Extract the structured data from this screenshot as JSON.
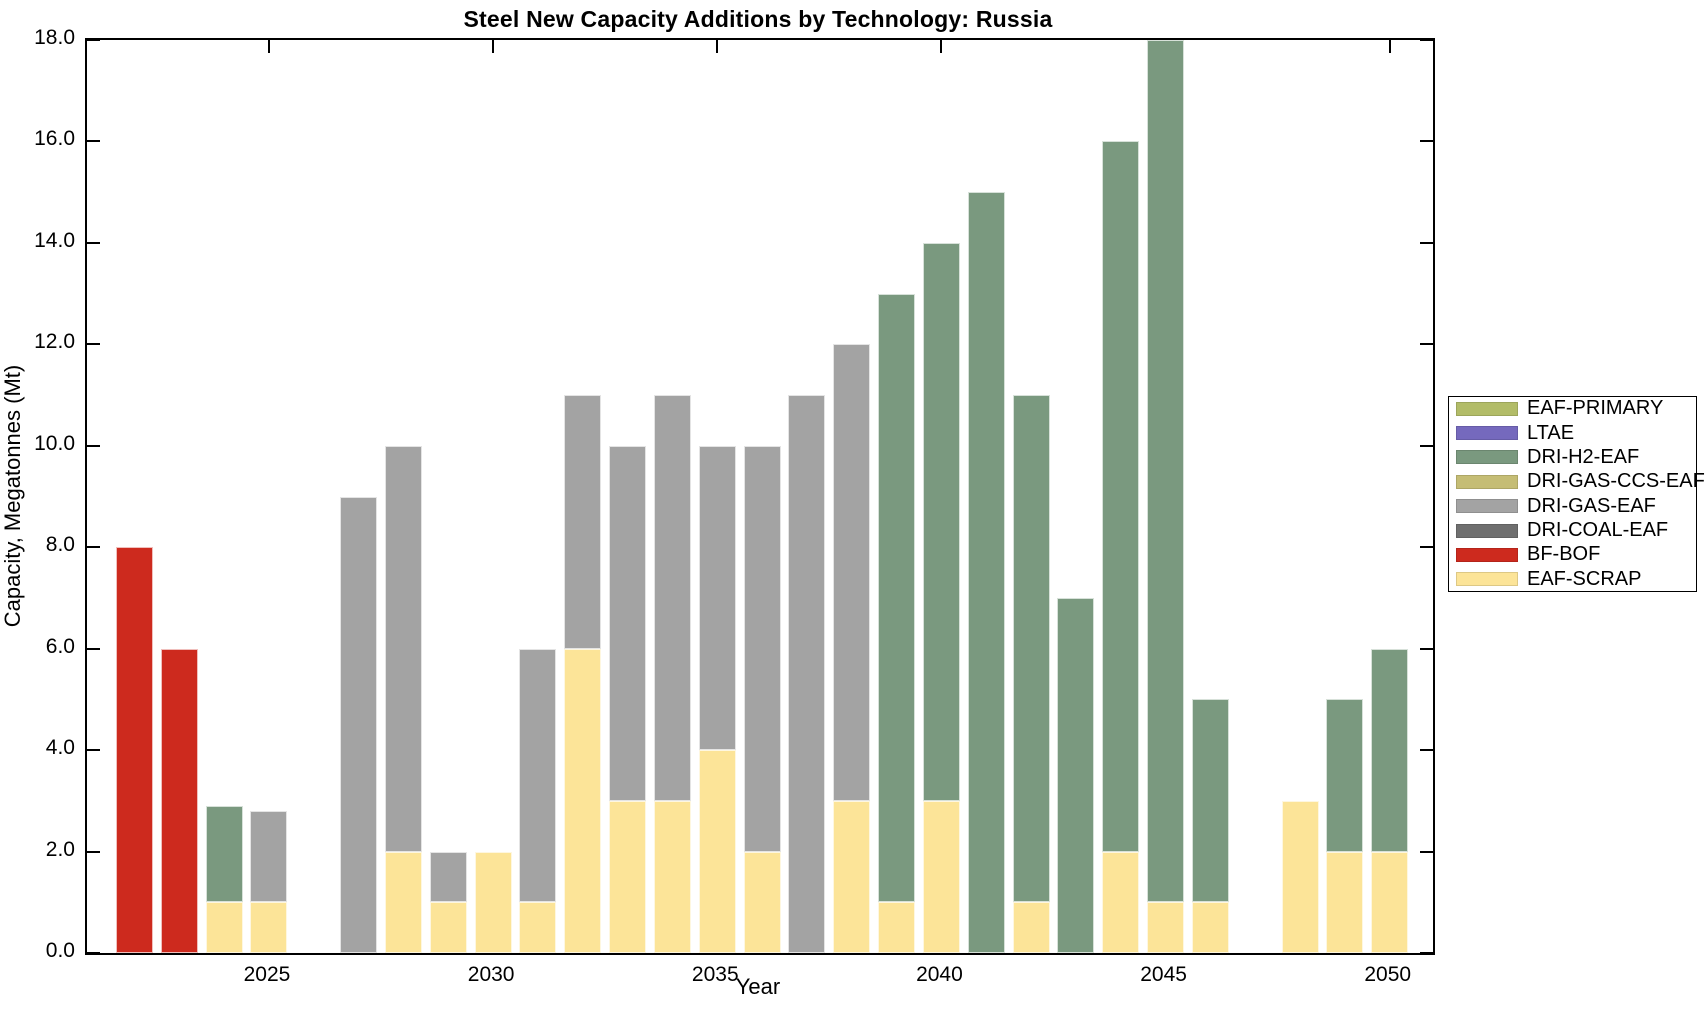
{
  "chart_data": {
    "type": "bar",
    "stacked": true,
    "title": "Steel New Capacity Additions by Technology: Russia",
    "xlabel": "Year",
    "ylabel": "Capacity, Megatonnes (Mt)",
    "ylim": [
      0,
      18
    ],
    "x_range": [
      2022,
      2050
    ],
    "grid": false,
    "legend_position": "right-outside",
    "yticks": [
      0,
      2,
      4,
      6,
      8,
      10,
      12,
      14,
      16,
      18
    ],
    "ytick_labels": [
      "0.0",
      "2.0",
      "4.0",
      "6.0",
      "8.0",
      "10.0",
      "12.0",
      "14.0",
      "16.0",
      "18.0"
    ],
    "xticks": [
      2025,
      2030,
      2035,
      2040,
      2045,
      2050
    ],
    "xtick_labels": [
      "2025",
      "2030",
      "2035",
      "2040",
      "2045",
      "2050"
    ],
    "legend": [
      {
        "label": "EAF-PRIMARY",
        "color": "#b2bc68"
      },
      {
        "label": "LTAE",
        "color": "#7569bd"
      },
      {
        "label": "DRI-H2-EAF",
        "color": "#7a997f"
      },
      {
        "label": "DRI-GAS-CCS-EAF",
        "color": "#c5bd75"
      },
      {
        "label": "DRI-GAS-EAF",
        "color": "#a3a3a3"
      },
      {
        "label": "DRI-COAL-EAF",
        "color": "#6f6f6f"
      },
      {
        "label": "BF-BOF",
        "color": "#cd2a1e"
      },
      {
        "label": "EAF-SCRAP",
        "color": "#fce498"
      }
    ],
    "series": [
      {
        "name": "EAF-SCRAP",
        "color": "#fce498",
        "data": {
          "2024": 1,
          "2025": 1,
          "2028": 2,
          "2029": 1,
          "2030": 2,
          "2031": 1,
          "2032": 6,
          "2033": 3,
          "2034": 3,
          "2035": 4,
          "2036": 2,
          "2038": 3,
          "2039": 1,
          "2040": 3,
          "2042": 1,
          "2044": 2,
          "2045": 1,
          "2046": 1,
          "2048": 3,
          "2049": 2,
          "2050": 2
        }
      },
      {
        "name": "BF-BOF",
        "color": "#cd2a1e",
        "data": {
          "2022": 8,
          "2023": 6
        }
      },
      {
        "name": "DRI-COAL-EAF",
        "color": "#6f6f6f",
        "data": {}
      },
      {
        "name": "DRI-GAS-EAF",
        "color": "#a3a3a3",
        "data": {
          "2025": 1.8,
          "2027": 9,
          "2028": 8,
          "2029": 1,
          "2031": 5,
          "2032": 5,
          "2033": 7,
          "2034": 8,
          "2035": 6,
          "2036": 8,
          "2037": 11,
          "2038": 9
        }
      },
      {
        "name": "DRI-GAS-CCS-EAF",
        "color": "#c5bd75",
        "data": {}
      },
      {
        "name": "DRI-H2-EAF",
        "color": "#7a997f",
        "data": {
          "2024": 1.9,
          "2039": 12,
          "2040": 11,
          "2041": 15,
          "2042": 10,
          "2043": 7,
          "2044": 14,
          "2045": 17,
          "2046": 4,
          "2049": 3,
          "2050": 4
        }
      },
      {
        "name": "LTAE",
        "color": "#7569bd",
        "data": {}
      },
      {
        "name": "EAF-PRIMARY",
        "color": "#b2bc68",
        "data": {}
      }
    ]
  }
}
